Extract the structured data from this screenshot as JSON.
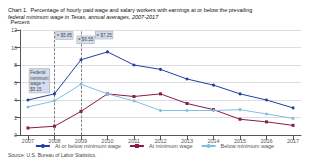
{
  "chart_data": {
    "type": "line",
    "title": "Chart 1.  Percentage of hourly paid wage and salary workers with earnings at or below the prevailing",
    "subtitle": "federal minimum wage in Texas, annual averages, 2007-2017",
    "ylabel": "Percent",
    "source": "Source: U.S. Bureau of Labor Statistics.",
    "x": [
      2007,
      2008,
      2009,
      2010,
      2011,
      2012,
      2013,
      2014,
      2015,
      2016,
      2017
    ],
    "series": [
      {
        "name": "At or below minimum wage",
        "color": "#2041a0",
        "marker": "circle",
        "values": [
          4.0,
          4.7,
          8.6,
          9.5,
          8.0,
          7.5,
          6.4,
          5.7,
          4.7,
          4.0,
          3.1
        ]
      },
      {
        "name": "At minimum wage",
        "color": "#8b1a4a",
        "marker": "square",
        "values": [
          0.8,
          1.0,
          2.7,
          4.7,
          4.4,
          4.7,
          3.6,
          2.9,
          1.8,
          1.5,
          1.1
        ]
      },
      {
        "name": "Below minimum wage",
        "color": "#80c0e0",
        "marker": "circle",
        "values": [
          3.2,
          3.9,
          5.8,
          4.7,
          3.9,
          2.8,
          2.8,
          2.8,
          2.9,
          2.4,
          1.9
        ]
      }
    ],
    "vlines": [
      2008,
      2009
    ],
    "annotations": [
      {
        "text": "= $5.85",
        "x": 2008.05,
        "y": 11.8,
        "color": "#c8d4e8"
      },
      {
        "text": "= $6.55",
        "x": 2008.85,
        "y": 11.3,
        "color": "#c8d4e8"
      },
      {
        "text": "= $7.25",
        "x": 2009.55,
        "y": 11.85,
        "color": "#c8d4e8"
      },
      {
        "text": "Federal\nminimum\nwage =\n$5.15",
        "x": 2007.05,
        "y": 6.2,
        "color": "#c8d4e8"
      }
    ],
    "xlim": [
      2006.7,
      2017.3
    ],
    "xticks": [
      2007,
      2008,
      2009,
      2010,
      2011,
      2012,
      2013,
      2014,
      2015,
      2016,
      2017
    ],
    "ylim": [
      0.0,
      12.0
    ],
    "yticks": [
      0.0,
      2.0,
      4.0,
      6.0,
      8.0,
      10.0,
      12.0
    ],
    "grid": true,
    "legend": "bottom"
  }
}
